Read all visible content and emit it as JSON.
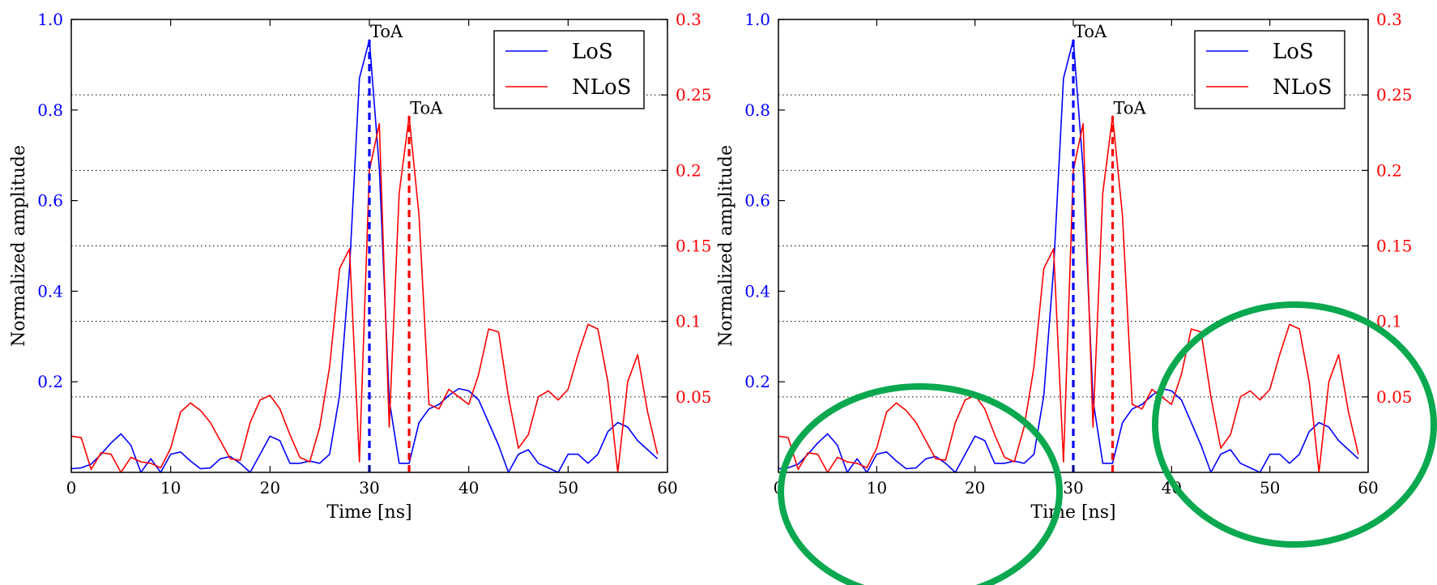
{
  "chart_data": [
    {
      "type": "line",
      "x_label": "Time [ns]",
      "y_left_label": "Normalized amplitude",
      "x_ticks": [
        "0",
        "10",
        "20",
        "30",
        "40",
        "50",
        "60"
      ],
      "y_left_ticks": [
        "0.2",
        "0.4",
        "0.6",
        "0.8",
        "1.0"
      ],
      "y_right_ticks": [
        "0.05",
        "0.1",
        "0.15",
        "0.2",
        "0.25",
        "0.3"
      ],
      "xlim": [
        0,
        60
      ],
      "ylim_left": [
        0,
        1.0
      ],
      "ylim_right": [
        0,
        0.3
      ],
      "grid": "horizontal dotted at right-axis ticks",
      "legend_placement": "top-right",
      "annotations": [
        {
          "text": "ToA",
          "x": 30
        },
        {
          "text": "ToA",
          "x": 34
        }
      ],
      "series": [
        {
          "name": "LoS",
          "axis": "left",
          "color": "#0000ff",
          "x": [
            0,
            1,
            2,
            3,
            4,
            5,
            6,
            7,
            8,
            9,
            10,
            11,
            12,
            13,
            14,
            15,
            16,
            17,
            18,
            19,
            20,
            21,
            22,
            23,
            24,
            25,
            26,
            27,
            28,
            29,
            30,
            31,
            32,
            33,
            34,
            35,
            36,
            37,
            38,
            39,
            40,
            41,
            42,
            43,
            44,
            45,
            46,
            47,
            48,
            49,
            50,
            51,
            52,
            53,
            54,
            55,
            56,
            57,
            58,
            59
          ],
          "values": [
            0.008,
            0.01,
            0.018,
            0.04,
            0.065,
            0.085,
            0.06,
            0.0,
            0.03,
            0.0,
            0.04,
            0.045,
            0.025,
            0.008,
            0.01,
            0.03,
            0.035,
            0.02,
            0.0,
            0.04,
            0.08,
            0.07,
            0.02,
            0.02,
            0.025,
            0.02,
            0.04,
            0.17,
            0.45,
            0.87,
            0.955,
            0.67,
            0.16,
            0.02,
            0.02,
            0.11,
            0.14,
            0.15,
            0.17,
            0.185,
            0.18,
            0.16,
            0.11,
            0.06,
            0.0,
            0.04,
            0.05,
            0.02,
            0.01,
            0.0,
            0.04,
            0.04,
            0.02,
            0.04,
            0.09,
            0.11,
            0.1,
            0.07,
            0.05,
            0.03
          ]
        },
        {
          "name": "NLoS",
          "axis": "right",
          "color": "#ff0000",
          "x": [
            0,
            1,
            2,
            3,
            4,
            5,
            6,
            7,
            8,
            9,
            10,
            11,
            12,
            13,
            14,
            15,
            16,
            17,
            18,
            19,
            20,
            21,
            22,
            23,
            24,
            25,
            26,
            27,
            28,
            29,
            30,
            31,
            32,
            33,
            34,
            35,
            36,
            37,
            38,
            39,
            40,
            41,
            42,
            43,
            44,
            45,
            46,
            47,
            48,
            49,
            50,
            51,
            52,
            53,
            54,
            55,
            56,
            57,
            58,
            59
          ],
          "values": [
            0.024,
            0.023,
            0.002,
            0.013,
            0.012,
            0.0,
            0.01,
            0.007,
            0.006,
            0.003,
            0.016,
            0.04,
            0.046,
            0.041,
            0.033,
            0.021,
            0.009,
            0.008,
            0.033,
            0.048,
            0.051,
            0.042,
            0.025,
            0.01,
            0.007,
            0.03,
            0.07,
            0.135,
            0.148,
            0.007,
            0.2,
            0.231,
            0.03,
            0.185,
            0.236,
            0.17,
            0.045,
            0.042,
            0.055,
            0.05,
            0.045,
            0.065,
            0.095,
            0.093,
            0.05,
            0.016,
            0.025,
            0.05,
            0.054,
            0.048,
            0.055,
            0.078,
            0.098,
            0.095,
            0.06,
            0.0,
            0.06,
            0.078,
            0.04,
            0.012
          ]
        }
      ]
    },
    {
      "type": "line",
      "x_label": "Time [ns]",
      "y_left_label": "Normalized amplitude",
      "x_ticks": [
        "0",
        "10",
        "20",
        "30",
        "40",
        "50",
        "60"
      ],
      "y_left_ticks": [
        "0.2",
        "0.4",
        "0.6",
        "0.8",
        "1.0"
      ],
      "y_right_ticks": [
        "0.05",
        "0.1",
        "0.15",
        "0.2",
        "0.25",
        "0.3"
      ],
      "xlim": [
        0,
        60
      ],
      "ylim_left": [
        0,
        1.0
      ],
      "ylim_right": [
        0,
        0.3
      ],
      "grid": "horizontal dotted at right-axis ticks",
      "legend_placement": "top-right",
      "annotations": [
        {
          "text": "ToA",
          "x": 30
        },
        {
          "text": "ToA",
          "x": 34
        }
      ],
      "highlight_circle_color": "#0aa84f",
      "series": [
        {
          "name": "LoS",
          "axis": "left",
          "color": "#0000ff",
          "x": [
            0,
            1,
            2,
            3,
            4,
            5,
            6,
            7,
            8,
            9,
            10,
            11,
            12,
            13,
            14,
            15,
            16,
            17,
            18,
            19,
            20,
            21,
            22,
            23,
            24,
            25,
            26,
            27,
            28,
            29,
            30,
            31,
            32,
            33,
            34,
            35,
            36,
            37,
            38,
            39,
            40,
            41,
            42,
            43,
            44,
            45,
            46,
            47,
            48,
            49,
            50,
            51,
            52,
            53,
            54,
            55,
            56,
            57,
            58,
            59
          ],
          "values": [
            0.008,
            0.01,
            0.018,
            0.04,
            0.065,
            0.085,
            0.06,
            0.0,
            0.03,
            0.0,
            0.04,
            0.045,
            0.025,
            0.008,
            0.01,
            0.03,
            0.035,
            0.02,
            0.0,
            0.04,
            0.08,
            0.07,
            0.02,
            0.02,
            0.025,
            0.02,
            0.04,
            0.17,
            0.45,
            0.87,
            0.955,
            0.67,
            0.16,
            0.02,
            0.02,
            0.11,
            0.14,
            0.15,
            0.17,
            0.185,
            0.18,
            0.16,
            0.11,
            0.06,
            0.0,
            0.04,
            0.05,
            0.02,
            0.01,
            0.0,
            0.04,
            0.04,
            0.02,
            0.04,
            0.09,
            0.11,
            0.1,
            0.07,
            0.05,
            0.03
          ]
        },
        {
          "name": "NLoS",
          "axis": "right",
          "color": "#ff0000",
          "x": [
            0,
            1,
            2,
            3,
            4,
            5,
            6,
            7,
            8,
            9,
            10,
            11,
            12,
            13,
            14,
            15,
            16,
            17,
            18,
            19,
            20,
            21,
            22,
            23,
            24,
            25,
            26,
            27,
            28,
            29,
            30,
            31,
            32,
            33,
            34,
            35,
            36,
            37,
            38,
            39,
            40,
            41,
            42,
            43,
            44,
            45,
            46,
            47,
            48,
            49,
            50,
            51,
            52,
            53,
            54,
            55,
            56,
            57,
            58,
            59
          ],
          "values": [
            0.024,
            0.023,
            0.002,
            0.013,
            0.012,
            0.0,
            0.01,
            0.007,
            0.006,
            0.003,
            0.016,
            0.04,
            0.046,
            0.041,
            0.033,
            0.021,
            0.009,
            0.008,
            0.033,
            0.048,
            0.051,
            0.042,
            0.025,
            0.01,
            0.007,
            0.03,
            0.07,
            0.135,
            0.148,
            0.007,
            0.2,
            0.231,
            0.03,
            0.185,
            0.236,
            0.17,
            0.045,
            0.042,
            0.055,
            0.05,
            0.045,
            0.065,
            0.095,
            0.093,
            0.05,
            0.016,
            0.025,
            0.05,
            0.054,
            0.048,
            0.055,
            0.078,
            0.098,
            0.095,
            0.06,
            0.0,
            0.06,
            0.078,
            0.04,
            0.012
          ]
        }
      ]
    }
  ]
}
